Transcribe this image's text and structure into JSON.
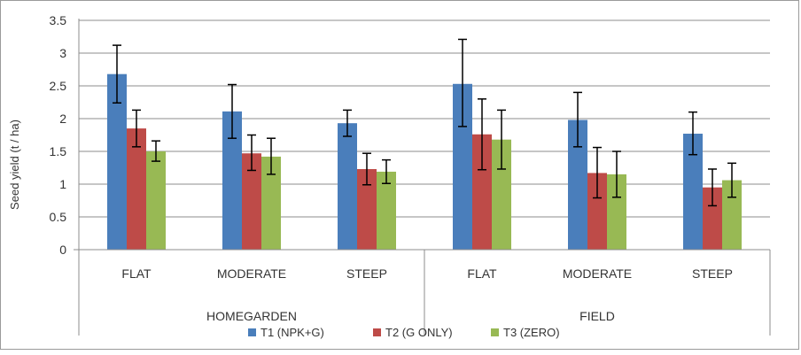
{
  "chart_data": {
    "type": "bar",
    "ylabel": "Seed yield (t / ha)",
    "ylim": [
      0,
      3.5
    ],
    "yticks": [
      "0",
      "0.5",
      "1",
      "1.5",
      "2",
      "2.5",
      "3",
      "3.5"
    ],
    "grid": true,
    "legend_position": "bottom",
    "groups": [
      {
        "label": "HOMEGARDEN",
        "categories": [
          "FLAT",
          "MODERATE",
          "STEEP"
        ]
      },
      {
        "label": "FIELD",
        "categories": [
          "FLAT",
          "MODERATE",
          "STEEP"
        ]
      }
    ],
    "categories": [
      "FLAT",
      "MODERATE",
      "STEEP",
      "FLAT",
      "MODERATE",
      "STEEP"
    ],
    "series": [
      {
        "name": "T1 (NPK+G)",
        "color": "#4a7ebb",
        "values": [
          2.68,
          2.11,
          1.93,
          2.53,
          1.98,
          1.77
        ],
        "error_low": [
          2.24,
          1.7,
          1.73,
          1.88,
          1.57,
          1.45
        ],
        "error_high": [
          3.12,
          2.52,
          2.13,
          3.21,
          2.4,
          2.1
        ]
      },
      {
        "name": "T2 (G ONLY)",
        "color": "#be4b48",
        "values": [
          1.85,
          1.47,
          1.23,
          1.76,
          1.17,
          0.95
        ],
        "error_low": [
          1.57,
          1.21,
          0.99,
          1.22,
          0.79,
          0.67
        ],
        "error_high": [
          2.13,
          1.75,
          1.47,
          2.3,
          1.56,
          1.23
        ]
      },
      {
        "name": "T3 (ZERO)",
        "color": "#98b954",
        "values": [
          1.5,
          1.42,
          1.19,
          1.68,
          1.15,
          1.06
        ],
        "error_low": [
          1.35,
          1.15,
          1.01,
          1.23,
          0.8,
          0.8
        ],
        "error_high": [
          1.66,
          1.7,
          1.37,
          2.13,
          1.5,
          1.32
        ]
      }
    ]
  }
}
